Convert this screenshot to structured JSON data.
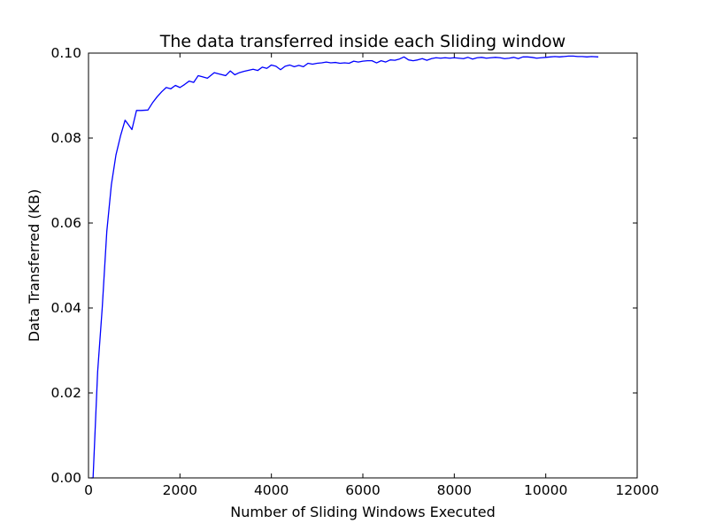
{
  "chart_data": {
    "type": "line",
    "title": "The data transferred inside each Sliding window",
    "xlabel": "Number of Sliding Windows Executed",
    "ylabel": "Data Transferred (KB)",
    "xlim": [
      0,
      12000
    ],
    "ylim": [
      0.0,
      0.1
    ],
    "xticks": [
      "0",
      "2000",
      "4000",
      "6000",
      "8000",
      "10000",
      "12000"
    ],
    "yticks": [
      "0.00",
      "0.02",
      "0.04",
      "0.06",
      "0.08",
      "0.10"
    ],
    "grid": false,
    "legend": "none",
    "color": "#0000ff",
    "series": [
      {
        "x": [
          50,
          100,
          200,
          300,
          400,
          500,
          600,
          700,
          800,
          850,
          950,
          1050,
          1150,
          1300,
          1400,
          1500,
          1600,
          1700,
          1800,
          1900,
          2000,
          2100,
          2200,
          2300,
          2400,
          2500,
          2600,
          2750,
          2850,
          3000,
          3100,
          3200,
          3300,
          3400,
          3600,
          3700,
          3800,
          3900,
          4000,
          4100,
          4200,
          4300,
          4400,
          4500,
          4600,
          4700,
          4800,
          4900,
          5000,
          5100,
          5200,
          5300,
          5400,
          5500,
          5600,
          5700,
          5800,
          5900,
          6000,
          6100,
          6200,
          6300,
          6400,
          6500,
          6600,
          6700,
          6800,
          6900,
          7000,
          7100,
          7200,
          7300,
          7400,
          7500,
          7600,
          7700,
          7800,
          7900,
          8000,
          8100,
          8200,
          8300,
          8400,
          8500,
          8600,
          8700,
          8800,
          8900,
          9000,
          9100,
          9200,
          9300,
          9400,
          9500,
          9600,
          9700,
          9800,
          9900,
          10000,
          10100,
          10200,
          10300,
          10400,
          10500,
          10600,
          10700,
          10800,
          10900,
          11000,
          11150
        ],
        "y": [
          0.0,
          0.0,
          0.025,
          0.04,
          0.058,
          0.069,
          0.076,
          0.0805,
          0.0842,
          0.0835,
          0.082,
          0.0865,
          0.0865,
          0.0866,
          0.0883,
          0.0897,
          0.0909,
          0.0919,
          0.0916,
          0.0924,
          0.0919,
          0.0926,
          0.0934,
          0.0931,
          0.0947,
          0.0944,
          0.0941,
          0.0954,
          0.0951,
          0.0947,
          0.0958,
          0.0949,
          0.0954,
          0.0957,
          0.0962,
          0.0959,
          0.0967,
          0.0964,
          0.0972,
          0.0969,
          0.0961,
          0.0969,
          0.0972,
          0.0968,
          0.0971,
          0.0968,
          0.0976,
          0.0974,
          0.0976,
          0.0977,
          0.0979,
          0.0977,
          0.0978,
          0.0976,
          0.0977,
          0.0976,
          0.0981,
          0.0979,
          0.0981,
          0.0982,
          0.0982,
          0.0977,
          0.0982,
          0.0979,
          0.0984,
          0.0983,
          0.0986,
          0.0991,
          0.0984,
          0.0982,
          0.0984,
          0.0987,
          0.0983,
          0.0987,
          0.0989,
          0.0988,
          0.0989,
          0.0988,
          0.0989,
          0.0988,
          0.0987,
          0.099,
          0.0986,
          0.0989,
          0.099,
          0.0988,
          0.0989,
          0.099,
          0.0989,
          0.0987,
          0.0988,
          0.099,
          0.0987,
          0.0991,
          0.0991,
          0.099,
          0.0988,
          0.0989,
          0.099,
          0.0991,
          0.0992,
          0.0991,
          0.0992,
          0.0993,
          0.0993,
          0.0992,
          0.0992,
          0.0991,
          0.0992,
          0.0991
        ]
      }
    ]
  }
}
